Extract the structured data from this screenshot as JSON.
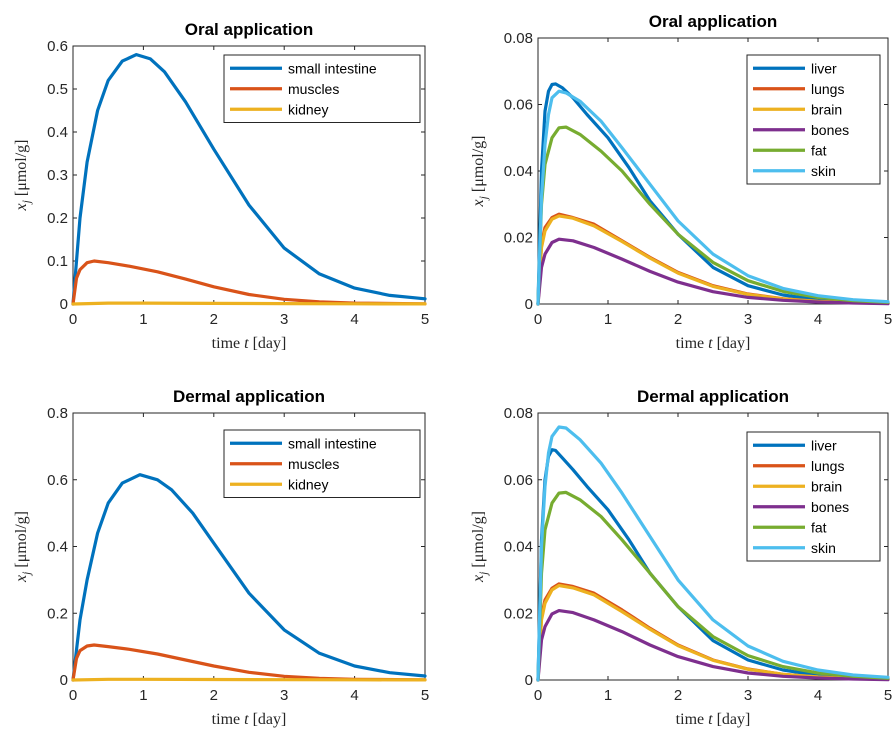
{
  "figure": {
    "colors": {
      "blue": "#0072BD",
      "orange": "#D95319",
      "yellow": "#EDB120",
      "purple": "#7E2F8E",
      "green": "#77AC30",
      "cyan": "#4DBEEE"
    }
  },
  "chart_data": [
    {
      "type": "line",
      "title": "Oral application",
      "xlabel": "time t [day]",
      "ylabel": "x_j [μmol/g]",
      "xlim": [
        0,
        5
      ],
      "ylim": [
        0,
        0.6
      ],
      "xticks": [
        "0",
        "1",
        "2",
        "3",
        "4",
        "5"
      ],
      "yticks": [
        "0",
        "0.1",
        "0.2",
        "0.3",
        "0.4",
        "0.5",
        "0.6"
      ],
      "legend_position": "top-right",
      "grid": false,
      "series": [
        {
          "name": "small intestine",
          "color": "#0072BD",
          "x": [
            0,
            0.1,
            0.2,
            0.35,
            0.5,
            0.7,
            0.9,
            1.1,
            1.3,
            1.6,
            2.0,
            2.5,
            3.0,
            3.5,
            4.0,
            4.5,
            5.0
          ],
          "y": [
            0,
            0.2,
            0.33,
            0.45,
            0.52,
            0.565,
            0.58,
            0.57,
            0.54,
            0.47,
            0.36,
            0.23,
            0.13,
            0.07,
            0.037,
            0.02,
            0.012
          ]
        },
        {
          "name": "muscles",
          "color": "#D95319",
          "x": [
            0,
            0.05,
            0.1,
            0.2,
            0.3,
            0.5,
            0.8,
            1.2,
            1.6,
            2.0,
            2.5,
            3.0,
            3.5,
            4.0,
            5.0
          ],
          "y": [
            0,
            0.06,
            0.08,
            0.096,
            0.1,
            0.096,
            0.088,
            0.075,
            0.058,
            0.04,
            0.022,
            0.011,
            0.005,
            0.002,
            0.0005
          ]
        },
        {
          "name": "kidney",
          "color": "#EDB120",
          "x": [
            0,
            0.5,
            1,
            2,
            3,
            4,
            5
          ],
          "y": [
            0,
            0.002,
            0.002,
            0.0015,
            0.001,
            0.0005,
            0.0002
          ]
        }
      ]
    },
    {
      "type": "line",
      "title": "Oral application",
      "xlabel": "time t [day]",
      "ylabel": "x_j [μmol/g]",
      "xlim": [
        0,
        5
      ],
      "ylim": [
        0,
        0.08
      ],
      "xticks": [
        "0",
        "1",
        "2",
        "3",
        "4",
        "5"
      ],
      "yticks": [
        "0",
        "0.02",
        "0.04",
        "0.06",
        "0.08"
      ],
      "legend_position": "top-right",
      "grid": false,
      "series": [
        {
          "name": "liver",
          "color": "#0072BD",
          "x": [
            0,
            0.05,
            0.1,
            0.15,
            0.2,
            0.25,
            0.35,
            0.5,
            0.7,
            1.0,
            1.3,
            1.6,
            2.0,
            2.5,
            3.0,
            3.5,
            4.0,
            4.5,
            5.0
          ],
          "y": [
            0,
            0.04,
            0.058,
            0.064,
            0.066,
            0.0662,
            0.065,
            0.062,
            0.057,
            0.05,
            0.041,
            0.031,
            0.021,
            0.011,
            0.0055,
            0.0027,
            0.0013,
            0.0006,
            0.0003
          ]
        },
        {
          "name": "lungs",
          "color": "#D95319",
          "x": [
            0,
            0.05,
            0.1,
            0.2,
            0.3,
            0.5,
            0.8,
            1.2,
            1.6,
            2.0,
            2.5,
            3.0,
            3.5,
            4.0,
            4.5,
            5.0
          ],
          "y": [
            0,
            0.018,
            0.023,
            0.026,
            0.027,
            0.026,
            0.024,
            0.019,
            0.014,
            0.0095,
            0.0055,
            0.003,
            0.0016,
            0.0008,
            0.0004,
            0.0002
          ]
        },
        {
          "name": "brain",
          "color": "#EDB120",
          "x": [
            0,
            0.05,
            0.1,
            0.2,
            0.3,
            0.5,
            0.8,
            1.2,
            1.6,
            2.0,
            2.5,
            3.0,
            3.5,
            4.0,
            4.5,
            5.0
          ],
          "y": [
            0,
            0.017,
            0.022,
            0.0255,
            0.0265,
            0.0258,
            0.0235,
            0.0188,
            0.0138,
            0.0093,
            0.0053,
            0.0029,
            0.0015,
            0.0008,
            0.0004,
            0.0002
          ]
        },
        {
          "name": "bones",
          "color": "#7E2F8E",
          "x": [
            0,
            0.05,
            0.1,
            0.2,
            0.3,
            0.5,
            0.8,
            1.2,
            1.6,
            2.0,
            2.5,
            3.0,
            3.5,
            4.0,
            4.5,
            5.0
          ],
          "y": [
            0,
            0.011,
            0.015,
            0.0185,
            0.0195,
            0.019,
            0.017,
            0.0135,
            0.0098,
            0.0066,
            0.0037,
            0.002,
            0.0011,
            0.0006,
            0.0003,
            0.0001
          ]
        },
        {
          "name": "fat",
          "color": "#77AC30",
          "x": [
            0,
            0.05,
            0.1,
            0.2,
            0.3,
            0.4,
            0.6,
            0.9,
            1.2,
            1.6,
            2.0,
            2.5,
            3.0,
            3.5,
            4.0,
            4.5,
            5.0
          ],
          "y": [
            0,
            0.03,
            0.042,
            0.05,
            0.053,
            0.0532,
            0.051,
            0.046,
            0.04,
            0.03,
            0.021,
            0.0125,
            0.007,
            0.0038,
            0.002,
            0.001,
            0.0005
          ]
        },
        {
          "name": "skin",
          "color": "#4DBEEE",
          "x": [
            0,
            0.05,
            0.1,
            0.15,
            0.2,
            0.3,
            0.4,
            0.6,
            0.9,
            1.2,
            1.6,
            2.0,
            2.5,
            3.0,
            3.5,
            4.0,
            4.5,
            5.0
          ],
          "y": [
            0,
            0.032,
            0.048,
            0.057,
            0.062,
            0.064,
            0.0635,
            0.061,
            0.055,
            0.047,
            0.036,
            0.025,
            0.015,
            0.0085,
            0.0047,
            0.0025,
            0.0013,
            0.0007
          ]
        }
      ]
    },
    {
      "type": "line",
      "title": "Dermal application",
      "xlabel": "time t [day]",
      "ylabel": "x_j [μmol/g]",
      "xlim": [
        0,
        5
      ],
      "ylim": [
        0,
        0.8
      ],
      "xticks": [
        "0",
        "1",
        "2",
        "3",
        "4",
        "5"
      ],
      "yticks": [
        "0",
        "0.2",
        "0.4",
        "0.6",
        "0.8"
      ],
      "legend_position": "top-right",
      "grid": false,
      "series": [
        {
          "name": "small intestine",
          "color": "#0072BD",
          "x": [
            0,
            0.1,
            0.2,
            0.35,
            0.5,
            0.7,
            0.95,
            1.2,
            1.4,
            1.7,
            2.0,
            2.5,
            3.0,
            3.5,
            4.0,
            4.5,
            5.0
          ],
          "y": [
            0,
            0.18,
            0.3,
            0.44,
            0.53,
            0.59,
            0.615,
            0.6,
            0.57,
            0.5,
            0.41,
            0.26,
            0.15,
            0.08,
            0.042,
            0.022,
            0.012
          ]
        },
        {
          "name": "muscles",
          "color": "#D95319",
          "x": [
            0,
            0.05,
            0.1,
            0.2,
            0.3,
            0.5,
            0.8,
            1.2,
            1.6,
            2.0,
            2.5,
            3.0,
            3.5,
            4.0,
            5.0
          ],
          "y": [
            0,
            0.065,
            0.088,
            0.102,
            0.105,
            0.1,
            0.092,
            0.078,
            0.06,
            0.042,
            0.023,
            0.011,
            0.005,
            0.002,
            0.0005
          ]
        },
        {
          "name": "kidney",
          "color": "#EDB120",
          "x": [
            0,
            0.5,
            1,
            2,
            3,
            4,
            5
          ],
          "y": [
            0,
            0.002,
            0.002,
            0.0015,
            0.001,
            0.0005,
            0.0002
          ]
        }
      ]
    },
    {
      "type": "line",
      "title": "Dermal application",
      "xlabel": "time t [day]",
      "ylabel": "x_j [μmol/g]",
      "xlim": [
        0,
        5
      ],
      "ylim": [
        0,
        0.08
      ],
      "xticks": [
        "0",
        "1",
        "2",
        "3",
        "4",
        "5"
      ],
      "yticks": [
        "0",
        "0.02",
        "0.04",
        "0.06",
        "0.08"
      ],
      "legend_position": "top-right",
      "grid": false,
      "series": [
        {
          "name": "liver",
          "color": "#0072BD",
          "x": [
            0,
            0.05,
            0.1,
            0.15,
            0.2,
            0.25,
            0.35,
            0.5,
            0.7,
            1.0,
            1.3,
            1.6,
            2.0,
            2.5,
            3.0,
            3.5,
            4.0,
            4.5,
            5.0
          ],
          "y": [
            0,
            0.042,
            0.06,
            0.067,
            0.069,
            0.0688,
            0.0665,
            0.063,
            0.058,
            0.051,
            0.042,
            0.032,
            0.022,
            0.0118,
            0.006,
            0.003,
            0.0014,
            0.0007,
            0.0003
          ]
        },
        {
          "name": "lungs",
          "color": "#D95319",
          "x": [
            0,
            0.05,
            0.1,
            0.2,
            0.3,
            0.5,
            0.8,
            1.2,
            1.6,
            2.0,
            2.5,
            3.0,
            3.5,
            4.0,
            4.5,
            5.0
          ],
          "y": [
            0,
            0.019,
            0.024,
            0.0275,
            0.0288,
            0.028,
            0.026,
            0.021,
            0.0155,
            0.0105,
            0.006,
            0.0033,
            0.0017,
            0.0009,
            0.0004,
            0.0002
          ]
        },
        {
          "name": "brain",
          "color": "#EDB120",
          "x": [
            0,
            0.05,
            0.1,
            0.2,
            0.3,
            0.5,
            0.8,
            1.2,
            1.6,
            2.0,
            2.5,
            3.0,
            3.5,
            4.0,
            4.5,
            5.0
          ],
          "y": [
            0,
            0.018,
            0.023,
            0.027,
            0.0283,
            0.0276,
            0.0255,
            0.0205,
            0.0152,
            0.0103,
            0.0059,
            0.0032,
            0.0017,
            0.0009,
            0.0004,
            0.0002
          ]
        },
        {
          "name": "bones",
          "color": "#7E2F8E",
          "x": [
            0,
            0.05,
            0.1,
            0.2,
            0.3,
            0.5,
            0.8,
            1.2,
            1.6,
            2.0,
            2.5,
            3.0,
            3.5,
            4.0,
            4.5,
            5.0
          ],
          "y": [
            0,
            0.012,
            0.016,
            0.0198,
            0.0208,
            0.0202,
            0.018,
            0.0145,
            0.0105,
            0.007,
            0.004,
            0.0021,
            0.0011,
            0.0006,
            0.0003,
            0.0001
          ]
        },
        {
          "name": "fat",
          "color": "#77AC30",
          "x": [
            0,
            0.05,
            0.1,
            0.2,
            0.3,
            0.4,
            0.6,
            0.9,
            1.2,
            1.6,
            2.0,
            2.5,
            3.0,
            3.5,
            4.0,
            4.5,
            5.0
          ],
          "y": [
            0,
            0.032,
            0.045,
            0.053,
            0.056,
            0.0562,
            0.054,
            0.049,
            0.042,
            0.032,
            0.022,
            0.013,
            0.0073,
            0.004,
            0.0021,
            0.0011,
            0.0005
          ]
        },
        {
          "name": "skin",
          "color": "#4DBEEE",
          "x": [
            0,
            0.05,
            0.1,
            0.15,
            0.2,
            0.3,
            0.4,
            0.6,
            0.9,
            1.2,
            1.6,
            2.0,
            2.5,
            3.0,
            3.5,
            4.0,
            4.5,
            5.0
          ],
          "y": [
            0,
            0.04,
            0.058,
            0.068,
            0.073,
            0.0758,
            0.0755,
            0.072,
            0.065,
            0.056,
            0.043,
            0.03,
            0.018,
            0.0102,
            0.0056,
            0.003,
            0.0015,
            0.0008
          ]
        }
      ]
    }
  ]
}
